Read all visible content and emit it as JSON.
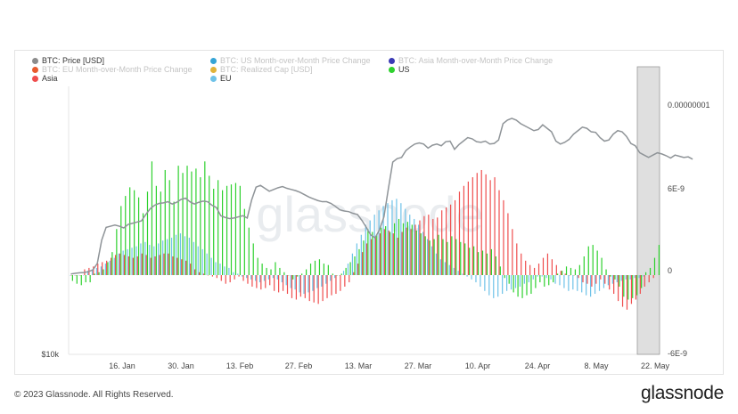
{
  "legend": {
    "items": [
      {
        "label": "BTC: Price [USD]",
        "color": "#8c8c8c",
        "dim": false
      },
      {
        "label": "BTC: US Month-over-Month Price Change",
        "color": "#35a4d6",
        "dim": true
      },
      {
        "label": "BTC: Asia Month-over-Month Price Change",
        "color": "#3b3bb5",
        "dim": true
      },
      {
        "label": "BTC: EU Month-over-Month Price Change",
        "color": "#e85b2e",
        "dim": true
      },
      {
        "label": "BTC: Realized Cap [USD]",
        "color": "#e0b33a",
        "dim": true
      },
      {
        "label": "US",
        "color": "#2ed12e",
        "dim": false
      },
      {
        "label": "Asia",
        "color": "#ef4e4e",
        "dim": false
      },
      {
        "label": "EU",
        "color": "#6ec2e8",
        "dim": false
      }
    ]
  },
  "watermark": "glassnode",
  "footer": {
    "copyright": "© 2023 Glassnode. All Rights Reserved."
  },
  "brand": {
    "logo_text": "glassnode"
  },
  "chart_data": {
    "type": "bar",
    "x_ticks": [
      "16. Jan",
      "30. Jan",
      "13. Feb",
      "27. Feb",
      "13. Mar",
      "27. Mar",
      "10. Apr",
      "24. Apr",
      "8. May",
      "22. May"
    ],
    "left_axis": {
      "ticks": [
        "$10k"
      ]
    },
    "right_axis": {
      "ticks": [
        "0.00000001",
        "6E-9",
        "0",
        "-6E-9"
      ],
      "range": [
        -6e-09,
        1e-08
      ]
    },
    "colors": {
      "us": "#2ed12e",
      "asia": "#ef4e4e",
      "eu": "#6ec2e8",
      "price": "#8f9498",
      "shade": "#d9d9d9"
    },
    "series": [
      {
        "name": "US",
        "values": [
          -0.4,
          -0.6,
          -0.7,
          -0.5,
          -0.5,
          0.1,
          0.2,
          0.4,
          0.9,
          1.6,
          3.2,
          4.8,
          5.5,
          6.1,
          5.9,
          5.4,
          4.3,
          5.8,
          7.9,
          6.2,
          5.8,
          7.3,
          6.6,
          5.1,
          7.6,
          7.1,
          7.6,
          7.2,
          7.4,
          6.8,
          7.9,
          6.9,
          6.0,
          6.6,
          5.9,
          6.2,
          6.3,
          6.4,
          6.2,
          4.6,
          3.3,
          2.2,
          1.2,
          0.8,
          0.5,
          0.4,
          0.9,
          0.5,
          0.2,
          0.0,
          -0.3,
          -0.1,
          0.1,
          0.4,
          0.8,
          1.0,
          1.1,
          0.8,
          0.7,
          0.1,
          0.0,
          0.1,
          0.5,
          0.9,
          1.3,
          1.8,
          2.4,
          3.2,
          3.0,
          2.8,
          3.3,
          3.4,
          3.0,
          3.6,
          3.9,
          3.6,
          3.7,
          3.5,
          3.1,
          2.9,
          2.7,
          2.4,
          2.5,
          2.8,
          2.5,
          2.3,
          2.7,
          2.5,
          2.3,
          2.2,
          1.9,
          2.0,
          1.6,
          1.7,
          1.5,
          1.8,
          1.3,
          0.6,
          -0.2,
          -0.6,
          -1.2,
          -1.5,
          -1.6,
          -1.4,
          -1.3,
          -0.9,
          -0.5,
          -0.8,
          -0.7,
          -0.5,
          0.1,
          0.3,
          0.6,
          0.5,
          0.4,
          0.7,
          1.3,
          2.0,
          2.1,
          1.7,
          1.2,
          0.4,
          -0.1,
          -0.3,
          -0.8,
          -1.5,
          -1.7,
          -1.6,
          -1.4,
          -0.9,
          0.2,
          0.5,
          1.2,
          2.1
        ]
      },
      {
        "name": "Asia",
        "values": [
          0,
          0,
          0,
          0.4,
          0.5,
          0.6,
          0.8,
          0.9,
          1.0,
          1.2,
          1.4,
          1.5,
          1.4,
          1.3,
          1.2,
          1.3,
          1.5,
          1.4,
          1.2,
          1.3,
          1.4,
          1.5,
          1.5,
          1.3,
          1.2,
          1.1,
          1.0,
          0.8,
          0.4,
          0.2,
          0.1,
          0.0,
          -0.1,
          -0.2,
          -0.4,
          -0.6,
          -0.5,
          -0.3,
          -0.1,
          -0.4,
          -0.6,
          -0.8,
          -0.9,
          -1.0,
          -0.9,
          -0.7,
          -1.1,
          -1.2,
          -1.1,
          -1.3,
          -1.6,
          -1.7,
          -1.5,
          -1.6,
          -1.8,
          -1.9,
          -2.0,
          -1.8,
          -1.6,
          -1.4,
          -1.3,
          -1.1,
          -0.8,
          -0.5,
          0.2,
          0.8,
          1.6,
          2.2,
          2.5,
          2.7,
          2.9,
          3.2,
          3.1,
          2.9,
          2.6,
          3.0,
          3.3,
          3.2,
          3.5,
          3.8,
          4.1,
          4.2,
          3.9,
          4.0,
          4.5,
          4.7,
          4.9,
          5.2,
          5.8,
          6.2,
          6.5,
          6.8,
          7.1,
          7.3,
          7.0,
          6.6,
          6.8,
          5.9,
          5.2,
          4.3,
          3.2,
          2.2,
          1.5,
          1.0,
          0.7,
          0.5,
          0.8,
          1.2,
          1.5,
          1.1,
          0.7,
          0.3,
          0.1,
          0.0,
          0.0,
          -0.2,
          -0.5,
          -0.6,
          -0.8,
          -0.6,
          -0.3,
          -0.6,
          -1.0,
          -1.3,
          -1.8,
          -2.2,
          -2.4,
          -2.0,
          -1.7,
          -1.3,
          -0.8,
          -0.5,
          -0.2
        ]
      },
      {
        "name": "EU",
        "values": [
          0,
          0,
          0,
          0,
          0.3,
          0.4,
          0.5,
          0.6,
          0.8,
          1.0,
          1.2,
          1.5,
          1.7,
          1.8,
          1.9,
          2.0,
          2.2,
          2.3,
          2.1,
          2.0,
          2.2,
          2.4,
          2.5,
          2.6,
          2.8,
          2.9,
          2.7,
          2.6,
          2.3,
          2.0,
          1.8,
          1.5,
          1.2,
          0.9,
          0.8,
          0.6,
          0.5,
          0.2,
          0.1,
          -0.1,
          -0.2,
          -0.3,
          -0.4,
          -0.5,
          -0.4,
          -0.3,
          -0.2,
          -0.3,
          -0.5,
          -0.7,
          -0.9,
          -1.0,
          -1.2,
          -1.3,
          -1.2,
          -1.1,
          -0.9,
          -0.8,
          -0.6,
          -0.4,
          -0.2,
          0.0,
          0.3,
          0.8,
          1.5,
          2.2,
          2.8,
          3.5,
          3.8,
          4.2,
          4.5,
          4.8,
          5.0,
          5.2,
          5.3,
          5.0,
          4.6,
          4.2,
          3.9,
          3.5,
          3.0,
          2.5,
          2.0,
          1.5,
          1.1,
          0.9,
          0.7,
          0.5,
          0.3,
          0.1,
          -0.1,
          -0.3,
          -0.5,
          -0.8,
          -1.1,
          -1.4,
          -1.6,
          -1.5,
          -1.3,
          -1.1,
          -1.0,
          -0.9,
          -0.8,
          -0.6,
          -0.5,
          -0.3,
          -0.1,
          -0.1,
          -0.2,
          -0.3,
          -0.6,
          -0.7,
          -0.9,
          -1.1,
          -1.0,
          -1.1,
          -1.2,
          -1.4,
          -1.5,
          -1.3,
          -1.1,
          -0.9,
          -0.7,
          -0.6,
          -0.5,
          -0.4,
          -0.3,
          -0.3,
          -0.2,
          -0.2,
          -0.1
        ]
      },
      {
        "name": "BTC: Price [USD]",
        "values": [
          16900,
          16950,
          17000,
          17020,
          17100,
          17250,
          17800,
          19800,
          20900,
          21000,
          21100,
          21000,
          20850,
          21150,
          21250,
          21350,
          21450,
          22000,
          22500,
          22800,
          22950,
          23000,
          23100,
          22900,
          23050,
          23300,
          23400,
          23100,
          22900,
          23050,
          23150,
          23100,
          22800,
          22600,
          21900,
          21750,
          21650,
          21700,
          21800,
          21900,
          21700,
          23250,
          24350,
          24500,
          24250,
          24000,
          24150,
          24300,
          24400,
          24250,
          24150,
          24050,
          23900,
          23700,
          23500,
          23350,
          23200,
          23100,
          23100,
          22950,
          22700,
          22400,
          22300,
          22250,
          22100,
          22000,
          21500,
          20900,
          20250,
          20000,
          20700,
          21800,
          24200,
          26500,
          26800,
          26900,
          27500,
          27800,
          28050,
          28150,
          28050,
          27700,
          27950,
          28050,
          27900,
          28250,
          28300,
          27600,
          28000,
          28300,
          28600,
          28500,
          28250,
          28200,
          28300,
          28050,
          28100,
          28400,
          29800,
          30100,
          30250,
          30100,
          29800,
          29600,
          29400,
          29200,
          29300,
          29700,
          29400,
          29100,
          28300,
          28050,
          28200,
          28450,
          28900,
          29200,
          29500,
          29400,
          29100,
          29050,
          28600,
          28300,
          28400,
          28900,
          29200,
          29100,
          28700,
          28100,
          27900,
          27300,
          27100,
          26900,
          27100,
          27300,
          27200,
          27050,
          26850,
          27100,
          27000,
          26900,
          26950,
          26750
        ]
      }
    ]
  }
}
